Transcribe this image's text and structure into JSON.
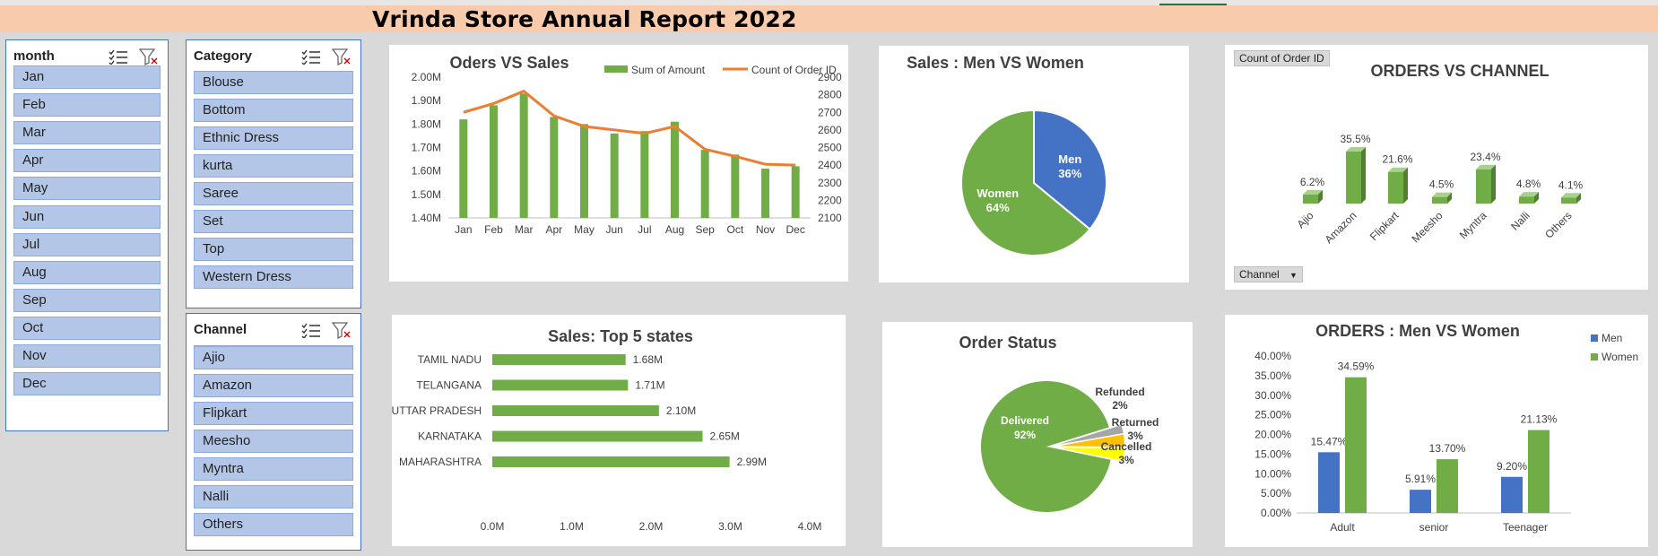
{
  "title": "Vrinda Store Annual Report 2022",
  "colors": {
    "green": "#70ad47",
    "blue": "#4472c4",
    "orange": "#ed7d31",
    "slicer_item": "#b4c6e7",
    "title_bg": "#f8cbad"
  },
  "slicers": {
    "month": {
      "label": "month",
      "items": [
        "Jan",
        "Feb",
        "Mar",
        "Apr",
        "May",
        "Jun",
        "Jul",
        "Aug",
        "Sep",
        "Oct",
        "Nov",
        "Dec"
      ]
    },
    "category": {
      "label": "Category",
      "items": [
        "Blouse",
        "Bottom",
        "Ethnic Dress",
        "kurta",
        "Saree",
        "Set",
        "Top",
        "Western Dress"
      ]
    },
    "channel": {
      "label": "Channel",
      "items": [
        "Ajio",
        "Amazon",
        "Flipkart",
        "Meesho",
        "Myntra",
        "Nalli",
        "Others"
      ]
    },
    "icons": [
      "multi-select-icon",
      "clear-filter-icon"
    ]
  },
  "chart_data": [
    {
      "id": "orders-vs-sales",
      "type": "bar",
      "title": "Oders VS Sales",
      "categories": [
        "Jan",
        "Feb",
        "Mar",
        "Apr",
        "May",
        "Jun",
        "Jul",
        "Aug",
        "Sep",
        "Oct",
        "Nov",
        "Dec"
      ],
      "series": [
        {
          "name": "Sum of Amount",
          "type": "bar",
          "axis": "left",
          "values": [
            1.82,
            1.88,
            1.93,
            1.83,
            1.8,
            1.76,
            1.77,
            1.81,
            1.69,
            1.67,
            1.61,
            1.62
          ]
        },
        {
          "name": "Count of Order ID",
          "type": "line",
          "axis": "right",
          "values": [
            2700,
            2750,
            2820,
            2680,
            2620,
            2600,
            2580,
            2620,
            2490,
            2450,
            2405,
            2400
          ]
        }
      ],
      "ylim": [
        1.4,
        2.0
      ],
      "yticks": [
        "1.40M",
        "1.50M",
        "1.60M",
        "1.70M",
        "1.80M",
        "1.90M",
        "2.00M"
      ],
      "y2lim": [
        2100,
        2900
      ],
      "y2ticks": [
        "2100",
        "2200",
        "2300",
        "2400",
        "2500",
        "2600",
        "2700",
        "2800",
        "2900"
      ],
      "legend": "top-right"
    },
    {
      "id": "sales-men-women",
      "type": "pie",
      "title": "Sales : Men VS Women",
      "labels": [
        "Men",
        "Women"
      ],
      "values": [
        36,
        64
      ],
      "value_labels": [
        "36%",
        "64%"
      ]
    },
    {
      "id": "orders-vs-channel",
      "type": "bar",
      "title": "ORDERS VS CHANNEL",
      "field_button": "Count of Order ID",
      "axis_button": "Channel",
      "categories": [
        "Ajio",
        "Amazon",
        "Flipkart",
        "Meesho",
        "Myntra",
        "Nalli",
        "Others"
      ],
      "values": [
        6.2,
        35.5,
        21.6,
        4.5,
        23.4,
        4.8,
        4.1
      ],
      "value_labels": [
        "6.2%",
        "35.5%",
        "21.6%",
        "4.5%",
        "23.4%",
        "4.8%",
        "4.1%"
      ]
    },
    {
      "id": "top-5-states",
      "type": "bar",
      "orientation": "horizontal",
      "title": "Sales: Top 5 states",
      "categories": [
        "TAMIL NADU",
        "TELANGANA",
        "UTTAR PRADESH",
        "KARNATAKA",
        "MAHARASHTRA"
      ],
      "values": [
        1.68,
        1.71,
        2.1,
        2.65,
        2.99
      ],
      "value_labels": [
        "1.68M",
        "1.71M",
        "2.10M",
        "2.65M",
        "2.99M"
      ],
      "xlim": [
        0,
        4
      ],
      "xticks": [
        "0.0M",
        "1.0M",
        "2.0M",
        "3.0M",
        "4.0M"
      ]
    },
    {
      "id": "order-status",
      "type": "pie",
      "title": "Order Status",
      "labels": [
        "Delivered",
        "Refunded",
        "Returned",
        "Cancelled"
      ],
      "values": [
        92,
        2,
        3,
        3
      ],
      "value_labels": [
        "92%",
        "2%",
        "3%",
        "3%"
      ]
    },
    {
      "id": "orders-men-women",
      "type": "bar",
      "title": "ORDERS : Men VS Women",
      "categories": [
        "Adult",
        "senior",
        "Teenager"
      ],
      "series": [
        {
          "name": "Men",
          "values": [
            15.47,
            5.91,
            9.2
          ],
          "value_labels": [
            "15.47%",
            "5.91%",
            "9.20%"
          ]
        },
        {
          "name": "Women",
          "values": [
            34.59,
            13.7,
            21.13
          ],
          "value_labels": [
            "34.59%",
            "13.70%",
            "21.13%"
          ]
        }
      ],
      "ylim": [
        0,
        40
      ],
      "yticks": [
        "0.00%",
        "5.00%",
        "10.00%",
        "15.00%",
        "20.00%",
        "25.00%",
        "30.00%",
        "35.00%",
        "40.00%"
      ],
      "legend": "top-right"
    }
  ]
}
